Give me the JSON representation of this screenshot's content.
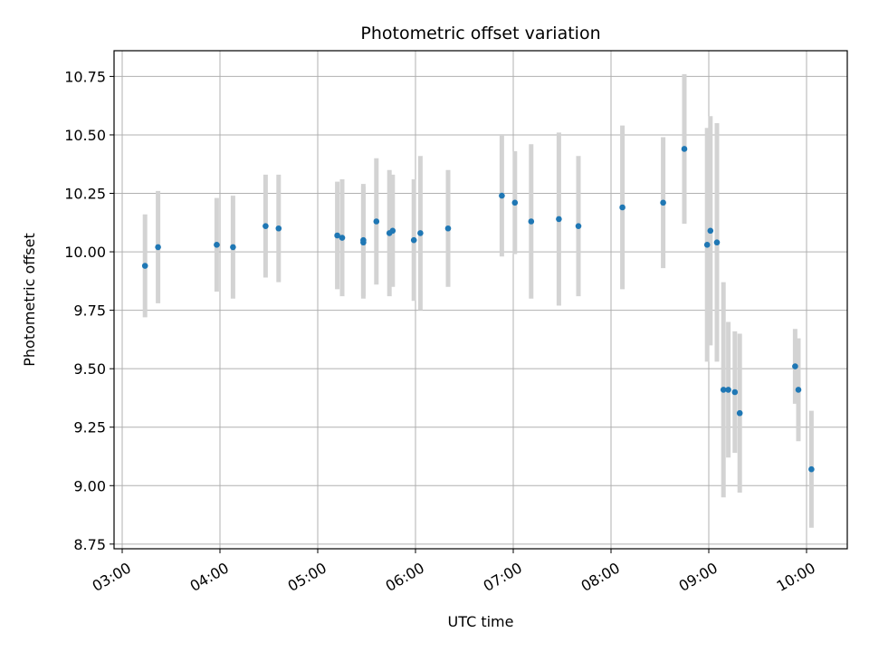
{
  "chart_data": {
    "type": "scatter",
    "title": "Photometric offset variation",
    "xlabel": "UTC time",
    "ylabel": "Photometric offset",
    "x_ticks": [
      "03:00",
      "04:00",
      "05:00",
      "06:00",
      "07:00",
      "08:00",
      "09:00",
      "10:00"
    ],
    "y_ticks": [
      "8.75",
      "9.00",
      "9.25",
      "9.50",
      "9.75",
      "10.00",
      "10.25",
      "10.50",
      "10.75"
    ],
    "xlim": [
      "02:55",
      "10:25"
    ],
    "ylim": [
      8.73,
      10.86
    ],
    "grid": true,
    "point_color": "#1f77b4",
    "errorbar_color": "#d3d3d3",
    "series": [
      {
        "points": [
          {
            "x": "03:14",
            "y": 9.94,
            "err": 0.22
          },
          {
            "x": "03:22",
            "y": 10.02,
            "err": 0.24
          },
          {
            "x": "03:58",
            "y": 10.03,
            "err": 0.2
          },
          {
            "x": "04:08",
            "y": 10.02,
            "err": 0.22
          },
          {
            "x": "04:28",
            "y": 10.11,
            "err": 0.22
          },
          {
            "x": "04:36",
            "y": 10.1,
            "err": 0.23
          },
          {
            "x": "05:12",
            "y": 10.07,
            "err": 0.23
          },
          {
            "x": "05:15",
            "y": 10.06,
            "err": 0.25
          },
          {
            "x": "05:28",
            "y": 10.04,
            "err": 0.24
          },
          {
            "x": "05:28",
            "y": 10.05,
            "err": 0.24
          },
          {
            "x": "05:36",
            "y": 10.13,
            "err": 0.27
          },
          {
            "x": "05:44",
            "y": 10.08,
            "err": 0.27
          },
          {
            "x": "05:46",
            "y": 10.09,
            "err": 0.24
          },
          {
            "x": "05:59",
            "y": 10.05,
            "err": 0.26
          },
          {
            "x": "06:03",
            "y": 10.08,
            "err": 0.33
          },
          {
            "x": "06:20",
            "y": 10.1,
            "err": 0.25
          },
          {
            "x": "06:53",
            "y": 10.24,
            "err": 0.26
          },
          {
            "x": "07:01",
            "y": 10.21,
            "err": 0.22
          },
          {
            "x": "07:11",
            "y": 10.13,
            "err": 0.33
          },
          {
            "x": "07:28",
            "y": 10.14,
            "err": 0.37
          },
          {
            "x": "07:40",
            "y": 10.11,
            "err": 0.3
          },
          {
            "x": "08:07",
            "y": 10.19,
            "err": 0.35
          },
          {
            "x": "08:32",
            "y": 10.21,
            "err": 0.28
          },
          {
            "x": "08:45",
            "y": 10.44,
            "err": 0.32
          },
          {
            "x": "08:59",
            "y": 10.03,
            "err": 0.5
          },
          {
            "x": "09:01",
            "y": 10.09,
            "err": 0.49
          },
          {
            "x": "09:05",
            "y": 10.04,
            "err": 0.51
          },
          {
            "x": "09:09",
            "y": 9.41,
            "err": 0.46
          },
          {
            "x": "09:12",
            "y": 9.41,
            "err": 0.29
          },
          {
            "x": "09:16",
            "y": 9.4,
            "err": 0.26
          },
          {
            "x": "09:19",
            "y": 9.31,
            "err": 0.34
          },
          {
            "x": "09:53",
            "y": 9.51,
            "err": 0.16
          },
          {
            "x": "09:55",
            "y": 9.41,
            "err": 0.22
          },
          {
            "x": "10:03",
            "y": 9.07,
            "err": 0.25
          }
        ]
      }
    ]
  }
}
